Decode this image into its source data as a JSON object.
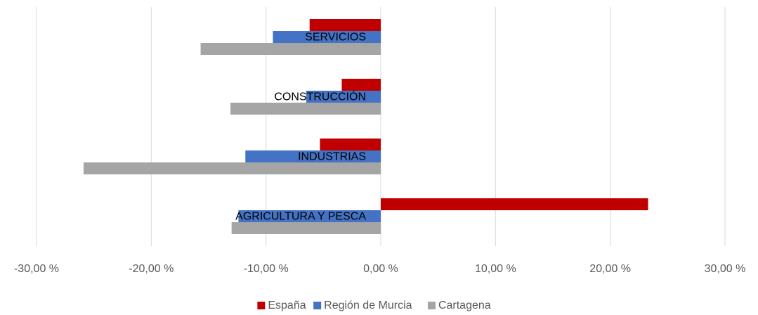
{
  "chart_data": {
    "type": "bar",
    "orientation": "horizontal",
    "categories": [
      "SERVICIOS",
      "CONSTRUCCIÓN",
      "INDUSTRIAS",
      "AGRICULTURA Y PESCA"
    ],
    "series": [
      {
        "name": "España",
        "color": "#c00000",
        "values": [
          -6.2,
          -3.4,
          -5.3,
          23.3
        ]
      },
      {
        "name": "Región de Murcia",
        "color": "#4472c4",
        "values": [
          -9.4,
          -6.5,
          -11.8,
          -12.4
        ]
      },
      {
        "name": "Cartagena",
        "color": "#a5a5a5",
        "values": [
          -15.7,
          -13.1,
          -25.9,
          -13.0
        ]
      }
    ],
    "xlim": [
      -30,
      30
    ],
    "xticks": [
      {
        "value": -30,
        "label": "-30,00 %"
      },
      {
        "value": -20,
        "label": "-20,00 %"
      },
      {
        "value": -10,
        "label": "-10,00 %"
      },
      {
        "value": 0,
        "label": "0,00 %"
      },
      {
        "value": 10,
        "label": "10,00 %"
      },
      {
        "value": 20,
        "label": "20,00 %"
      },
      {
        "value": 30,
        "label": "30,00 %"
      }
    ],
    "grid": true,
    "legend": "bottom"
  }
}
